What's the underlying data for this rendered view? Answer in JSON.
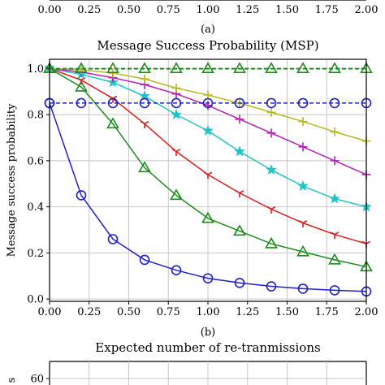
{
  "figure": {
    "top_caption": "(a)",
    "bottom_caption": "(b)"
  },
  "chart_data": [
    {
      "type": "line",
      "title": "",
      "partial": "top-cropped",
      "xticks": [
        "0.00",
        "0.25",
        "0.50",
        "0.75",
        "1.00",
        "1.25",
        "1.50",
        "1.75",
        "2.00"
      ],
      "xlim": [
        0,
        2
      ]
    },
    {
      "type": "line",
      "title": "Message Success Probability (MSP)",
      "xlabel": "",
      "ylabel": "Message success probability",
      "xlim": [
        0,
        2
      ],
      "ylim": [
        -0.01,
        1.04
      ],
      "grid": true,
      "xticks": [
        "0.00",
        "0.25",
        "0.50",
        "0.75",
        "1.00",
        "1.25",
        "1.50",
        "1.75",
        "2.00"
      ],
      "yticks": [
        "0.0",
        "0.2",
        "0.4",
        "0.6",
        "0.8",
        "1.0"
      ],
      "series": [
        {
          "color": "#1f1fcf",
          "marker": "circle",
          "dash": "",
          "x": [
            0,
            0.2,
            0.4,
            0.6,
            0.8,
            1.0,
            1.2,
            1.4,
            1.6,
            1.8,
            2.0
          ],
          "y": [
            0.85,
            0.45,
            0.26,
            0.17,
            0.125,
            0.09,
            0.07,
            0.055,
            0.045,
            0.038,
            0.033
          ]
        },
        {
          "color": "#1c8c1c",
          "marker": "triangle",
          "dash": "",
          "x": [
            0,
            0.2,
            0.4,
            0.6,
            0.8,
            1.0,
            1.2,
            1.4,
            1.6,
            1.8,
            2.0
          ],
          "y": [
            1.0,
            0.92,
            0.76,
            0.57,
            0.45,
            0.35,
            0.295,
            0.24,
            0.205,
            0.17,
            0.14
          ]
        },
        {
          "color": "#dd1c1c",
          "marker": "tri-down",
          "dash": "",
          "x": [
            0,
            0.2,
            0.4,
            0.6,
            0.8,
            1.0,
            1.2,
            1.4,
            1.6,
            1.8,
            2.0
          ],
          "y": [
            1.0,
            0.95,
            0.87,
            0.76,
            0.64,
            0.54,
            0.46,
            0.39,
            0.33,
            0.28,
            0.24
          ]
        },
        {
          "color": "#22c3c9",
          "marker": "star",
          "dash": "",
          "x": [
            0,
            0.2,
            0.4,
            0.6,
            0.8,
            1.0,
            1.2,
            1.4,
            1.6,
            1.8,
            2.0
          ],
          "y": [
            1.0,
            0.975,
            0.94,
            0.88,
            0.8,
            0.73,
            0.64,
            0.56,
            0.49,
            0.435,
            0.4
          ]
        },
        {
          "color": "#b51fb5",
          "marker": "plus",
          "dash": "",
          "x": [
            0,
            0.2,
            0.4,
            0.6,
            0.8,
            1.0,
            1.2,
            1.4,
            1.6,
            1.8,
            2.0
          ],
          "y": [
            1.0,
            0.985,
            0.96,
            0.93,
            0.89,
            0.84,
            0.78,
            0.72,
            0.66,
            0.6,
            0.54
          ]
        },
        {
          "color": "#b8b820",
          "marker": "plus",
          "dash": "",
          "x": [
            0,
            0.2,
            0.4,
            0.6,
            0.8,
            1.0,
            1.2,
            1.4,
            1.6,
            1.8,
            2.0
          ],
          "y": [
            1.0,
            0.995,
            0.98,
            0.955,
            0.915,
            0.885,
            0.85,
            0.81,
            0.77,
            0.725,
            0.685
          ]
        },
        {
          "color": "#1f1fcf",
          "marker": "circle",
          "dash": "5,3",
          "x": [
            0,
            0.2,
            0.4,
            0.6,
            0.8,
            1.0,
            1.2,
            1.4,
            1.6,
            1.8,
            2.0
          ],
          "y": [
            0.85,
            0.85,
            0.85,
            0.85,
            0.85,
            0.85,
            0.85,
            0.85,
            0.85,
            0.85,
            0.85
          ]
        },
        {
          "color": "#dd1c1c",
          "marker": "",
          "dash": "5,3",
          "x": [
            0,
            0.2,
            0.4,
            0.6,
            0.8,
            1.0,
            1.2,
            1.4,
            1.6,
            1.8,
            2.0
          ],
          "y": [
            0.998,
            0.998,
            0.998,
            0.998,
            0.998,
            0.998,
            0.998,
            0.998,
            0.998,
            0.998,
            0.998
          ]
        },
        {
          "color": "#b8b820",
          "marker": "",
          "dash": "5,3",
          "x": [
            0,
            0.2,
            0.4,
            0.6,
            0.8,
            1.0,
            1.2,
            1.4,
            1.6,
            1.8,
            2.0
          ],
          "y": [
            1.0,
            1.0,
            1.0,
            1.0,
            1.0,
            1.0,
            1.0,
            1.0,
            1.0,
            1.0,
            1.0
          ]
        },
        {
          "color": "#1c8c1c",
          "marker": "triangle",
          "dash": "5,3",
          "x": [
            0,
            0.2,
            0.4,
            0.6,
            0.8,
            1.0,
            1.2,
            1.4,
            1.6,
            1.8,
            2.0
          ],
          "y": [
            1.0,
            1.0,
            1.0,
            1.0,
            1.0,
            1.0,
            1.0,
            1.0,
            1.0,
            1.0,
            1.0
          ]
        }
      ]
    },
    {
      "type": "line",
      "title": "Expected number of re-tranmissions",
      "partial": "bottom-cropped",
      "yticks": [
        "60"
      ],
      "ylabel": "s"
    }
  ]
}
